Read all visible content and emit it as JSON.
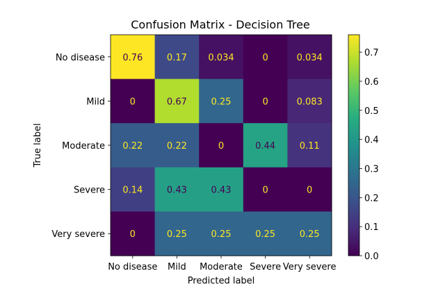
{
  "chart_data": {
    "type": "heatmap",
    "title": "Confusion Matrix - Decision Tree",
    "xlabel": "Predicted label",
    "ylabel": "True label",
    "x_categories": [
      "No disease",
      "Mild",
      "Moderate",
      "Severe",
      "Very severe"
    ],
    "y_categories": [
      "No disease",
      "Mild",
      "Moderate",
      "Severe",
      "Very severe"
    ],
    "values": [
      [
        0.76,
        0.17,
        0.034,
        0,
        0.034
      ],
      [
        0,
        0.67,
        0.25,
        0,
        0.083
      ],
      [
        0.22,
        0.22,
        0,
        0.44,
        0.11
      ],
      [
        0.14,
        0.43,
        0.43,
        0,
        0
      ],
      [
        0,
        0.25,
        0.25,
        0.25,
        0.25
      ]
    ],
    "value_labels": [
      [
        "0.76",
        "0.17",
        "0.034",
        "0",
        "0.034"
      ],
      [
        "0",
        "0.67",
        "0.25",
        "0",
        "0.083"
      ],
      [
        "0.22",
        "0.22",
        "0",
        "0.44",
        "0.11"
      ],
      [
        "0.14",
        "0.43",
        "0.43",
        "0",
        "0"
      ],
      [
        "0",
        "0.25",
        "0.25",
        "0.25",
        "0.25"
      ]
    ],
    "colormap": "viridis",
    "colorbar": {
      "range": [
        0,
        0.76
      ],
      "ticks": [
        0.0,
        0.1,
        0.2,
        0.3,
        0.4,
        0.5,
        0.6,
        0.7
      ],
      "tick_labels": [
        "0.0",
        "0.1",
        "0.2",
        "0.3",
        "0.4",
        "0.5",
        "0.6",
        "0.7"
      ]
    },
    "text_colors": {
      "on_dark": "#fde725",
      "on_light": "#440154"
    }
  }
}
